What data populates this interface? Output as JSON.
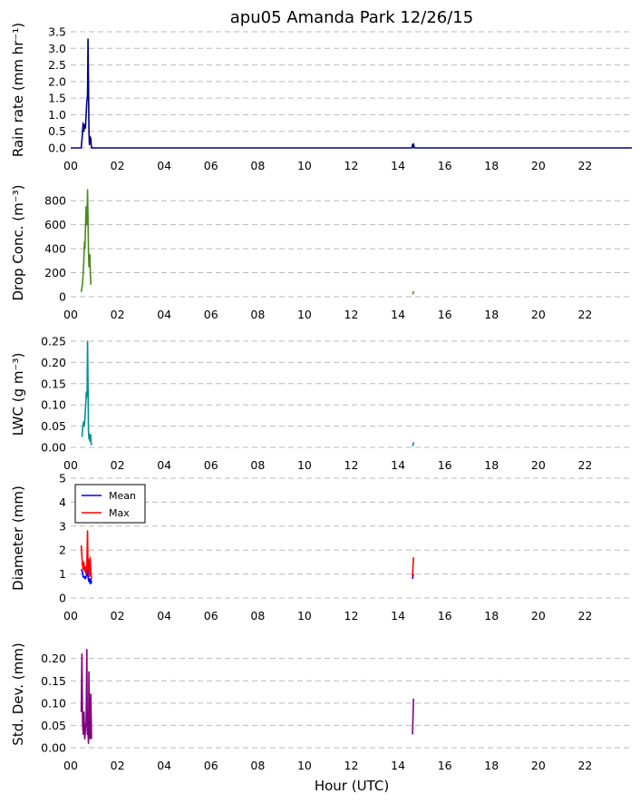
{
  "figure": {
    "title": "apu05 Amanda Park 12/26/15",
    "xlabel": "Hour (UTC)"
  },
  "chart_data": [
    {
      "type": "line",
      "ylabel": "Rain rate (mm hr⁻¹)",
      "xlim": [
        0,
        24
      ],
      "ylim": [
        0,
        3.5
      ],
      "yticks": [
        0.0,
        0.5,
        1.0,
        1.5,
        2.0,
        2.5,
        3.0,
        3.5
      ],
      "ytick_labels": [
        "0.0",
        "0.5",
        "1.0",
        "1.5",
        "2.0",
        "2.5",
        "3.0",
        "3.5"
      ],
      "xtick_labels": [
        "00",
        "02",
        "04",
        "06",
        "08",
        "10",
        "12",
        "14",
        "16",
        "18",
        "20",
        "22"
      ],
      "grid": "y-dashed",
      "series": [
        {
          "color": "#000080",
          "segments": [
            [
              [
                0,
                0
              ],
              [
                0.45,
                0
              ],
              [
                0.5,
                0.4
              ],
              [
                0.53,
                0.75
              ],
              [
                0.56,
                0.5
              ],
              [
                0.6,
                0.7
              ],
              [
                0.63,
                0.6
              ],
              [
                0.66,
                1.0
              ],
              [
                0.69,
                1.4
              ],
              [
                0.72,
                1.6
              ],
              [
                0.74,
                3.28
              ],
              [
                0.76,
                2.0
              ],
              [
                0.78,
                0.5
              ],
              [
                0.8,
                0.1
              ],
              [
                0.82,
                0.35
              ],
              [
                0.84,
                0.2
              ],
              [
                0.86,
                0.3
              ],
              [
                0.88,
                0.05
              ],
              [
                0.9,
                0
              ],
              [
                14.6,
                0
              ],
              [
                14.62,
                0.1
              ],
              [
                14.64,
                0.02
              ],
              [
                14.66,
                0.12
              ],
              [
                14.7,
                0
              ],
              [
                24,
                0
              ]
            ]
          ]
        }
      ]
    },
    {
      "type": "line",
      "ylabel": "Drop Conc. (m⁻³)",
      "xlim": [
        0,
        24
      ],
      "ylim": [
        0,
        900
      ],
      "yticks": [
        0,
        200,
        400,
        600,
        800
      ],
      "ytick_labels": [
        "0",
        "200",
        "400",
        "600",
        "800"
      ],
      "xtick_labels": [
        "00",
        "02",
        "04",
        "06",
        "08",
        "10",
        "12",
        "14",
        "16",
        "18",
        "20",
        "22"
      ],
      "grid": "y-dashed",
      "series": [
        {
          "color": "#4a8a1e",
          "segments": [
            [
              [
                0.45,
                40
              ],
              [
                0.5,
                100
              ],
              [
                0.53,
                180
              ],
              [
                0.56,
                300
              ],
              [
                0.59,
                460
              ],
              [
                0.61,
                400
              ],
              [
                0.63,
                560
              ],
              [
                0.66,
                750
              ],
              [
                0.69,
                600
              ],
              [
                0.72,
                890
              ],
              [
                0.74,
                650
              ],
              [
                0.76,
                380
              ],
              [
                0.78,
                250
              ],
              [
                0.8,
                300
              ],
              [
                0.82,
                350
              ],
              [
                0.84,
                200
              ],
              [
                0.86,
                100
              ]
            ],
            [
              [
                14.62,
                20
              ],
              [
                14.65,
                35
              ],
              [
                14.68,
                45
              ]
            ]
          ]
        }
      ]
    },
    {
      "type": "line",
      "ylabel": "LWC (g m⁻³)",
      "xlim": [
        0,
        24
      ],
      "ylim": [
        0,
        0.25
      ],
      "yticks": [
        0.0,
        0.05,
        0.1,
        0.15,
        0.2,
        0.25
      ],
      "ytick_labels": [
        "0.00",
        "0.05",
        "0.10",
        "0.15",
        "0.20",
        "0.25"
      ],
      "xtick_labels": [
        "00",
        "02",
        "04",
        "06",
        "08",
        "10",
        "12",
        "14",
        "16",
        "18",
        "20",
        "22"
      ],
      "grid": "y-dashed",
      "series": [
        {
          "color": "#009090",
          "segments": [
            [
              [
                0.48,
                0.025
              ],
              [
                0.52,
                0.05
              ],
              [
                0.55,
                0.06
              ],
              [
                0.58,
                0.05
              ],
              [
                0.61,
                0.07
              ],
              [
                0.64,
                0.1
              ],
              [
                0.67,
                0.13
              ],
              [
                0.7,
                0.12
              ],
              [
                0.72,
                0.25
              ],
              [
                0.74,
                0.15
              ],
              [
                0.76,
                0.04
              ],
              [
                0.78,
                0.02
              ],
              [
                0.8,
                0.03
              ],
              [
                0.82,
                0.015
              ],
              [
                0.85,
                0.03
              ],
              [
                0.88,
                0.005
              ]
            ],
            [
              [
                14.62,
                0.003
              ],
              [
                14.65,
                0.008
              ],
              [
                14.68,
                0.012
              ]
            ]
          ]
        }
      ]
    },
    {
      "type": "line",
      "ylabel": "Diameter (mm)",
      "xlim": [
        0,
        24
      ],
      "ylim": [
        0,
        5
      ],
      "yticks": [
        0,
        1,
        2,
        3,
        4,
        5
      ],
      "ytick_labels": [
        "0",
        "1",
        "2",
        "3",
        "4",
        "5"
      ],
      "xtick_labels": [
        "00",
        "02",
        "04",
        "06",
        "08",
        "10",
        "12",
        "14",
        "16",
        "18",
        "20",
        "22"
      ],
      "grid": "y-dashed",
      "legend": "upper-left",
      "series": [
        {
          "name": "Mean",
          "color": "#0000ff",
          "segments": [
            [
              [
                0.45,
                1.2
              ],
              [
                0.5,
                1.1
              ],
              [
                0.53,
                0.9
              ],
              [
                0.56,
                0.85
              ],
              [
                0.6,
                0.9
              ],
              [
                0.63,
                0.8
              ],
              [
                0.66,
                0.9
              ],
              [
                0.7,
                1.0
              ],
              [
                0.72,
                1.3
              ],
              [
                0.74,
                0.9
              ],
              [
                0.77,
                0.7
              ],
              [
                0.8,
                0.8
              ],
              [
                0.83,
                0.6
              ],
              [
                0.86,
                0.8
              ],
              [
                0.89,
                0.6
              ]
            ],
            [
              [
                14.62,
                0.8
              ],
              [
                14.66,
                1.0
              ]
            ]
          ]
        },
        {
          "name": "Max",
          "color": "#ff0000",
          "segments": [
            [
              [
                0.45,
                2.2
              ],
              [
                0.5,
                1.4
              ],
              [
                0.53,
                1.2
              ],
              [
                0.56,
                1.5
              ],
              [
                0.6,
                1.1
              ],
              [
                0.63,
                1.3
              ],
              [
                0.66,
                1.0
              ],
              [
                0.69,
                1.3
              ],
              [
                0.72,
                2.8
              ],
              [
                0.74,
                1.2
              ],
              [
                0.77,
                1.6
              ],
              [
                0.8,
                0.9
              ],
              [
                0.83,
                1.7
              ],
              [
                0.86,
                1.1
              ],
              [
                0.89,
                0.8
              ]
            ],
            [
              [
                14.62,
                0.9
              ],
              [
                14.66,
                1.7
              ]
            ]
          ]
        }
      ]
    },
    {
      "type": "line",
      "ylabel": "Std. Dev. (mm)",
      "xlim": [
        0,
        24
      ],
      "ylim": [
        0,
        0.24
      ],
      "yticks": [
        0.0,
        0.05,
        0.1,
        0.15,
        0.2
      ],
      "ytick_labels": [
        "0.00",
        "0.05",
        "0.10",
        "0.15",
        "0.20"
      ],
      "xtick_labels": [
        "00",
        "02",
        "04",
        "06",
        "08",
        "10",
        "12",
        "14",
        "16",
        "18",
        "20",
        "22"
      ],
      "grid": "y-dashed",
      "series": [
        {
          "color": "#800080",
          "segments": [
            [
              [
                0.45,
                0.08
              ],
              [
                0.48,
                0.21
              ],
              [
                0.51,
                0.05
              ],
              [
                0.54,
                0.03
              ],
              [
                0.57,
                0.08
              ],
              [
                0.6,
                0.02
              ],
              [
                0.63,
                0.04
              ],
              [
                0.66,
                0.06
              ],
              [
                0.69,
                0.22
              ],
              [
                0.71,
                0.03
              ],
              [
                0.73,
                0.05
              ],
              [
                0.76,
                0.01
              ],
              [
                0.78,
                0.17
              ],
              [
                0.8,
                0.06
              ],
              [
                0.83,
                0.02
              ],
              [
                0.86,
                0.12
              ],
              [
                0.89,
                0.02
              ]
            ],
            [
              [
                14.62,
                0.03
              ],
              [
                14.66,
                0.11
              ]
            ]
          ]
        }
      ]
    }
  ]
}
